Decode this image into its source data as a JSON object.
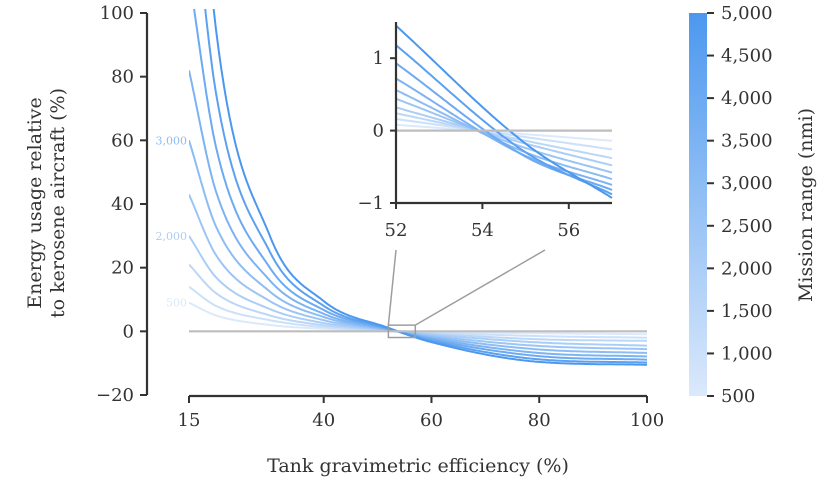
{
  "chart_data": [
    {
      "type": "line",
      "title": "",
      "xlabel": "Tank gravimetric efficiency (%)",
      "ylabel": [
        "Energy usage relative",
        "to kerosene aircraft (%)"
      ],
      "xlim": [
        15,
        100
      ],
      "ylim": [
        -20,
        100
      ],
      "x_ticks": [
        "15",
        "40",
        "60",
        "80",
        "100"
      ],
      "y_ticks": [
        "100",
        "80",
        "60",
        "40",
        "20",
        "0",
        "−20"
      ],
      "reference_line_y": 0,
      "series": [
        {
          "range_nmi": 500,
          "values": [
            {
              "x": 15,
              "y": 9
            },
            {
              "x": 20,
              "y": 5
            },
            {
              "x": 30,
              "y": 2
            },
            {
              "x": 40,
              "y": 0.8
            },
            {
              "x": 52,
              "y": 0.1
            },
            {
              "x": 60,
              "y": -0.2
            },
            {
              "x": 80,
              "y": -0.6
            },
            {
              "x": 100,
              "y": -0.9
            }
          ]
        },
        {
          "range_nmi": 1000,
          "values": [
            {
              "x": 15,
              "y": 14
            },
            {
              "x": 20,
              "y": 8
            },
            {
              "x": 30,
              "y": 3.5
            },
            {
              "x": 40,
              "y": 1.3
            },
            {
              "x": 52,
              "y": 0.15
            },
            {
              "x": 60,
              "y": -0.4
            },
            {
              "x": 80,
              "y": -1.5
            },
            {
              "x": 100,
              "y": -2
            }
          ]
        },
        {
          "range_nmi": 1500,
          "values": [
            {
              "x": 15,
              "y": 21
            },
            {
              "x": 20,
              "y": 12
            },
            {
              "x": 30,
              "y": 5
            },
            {
              "x": 40,
              "y": 1.9
            },
            {
              "x": 52,
              "y": 0.2
            },
            {
              "x": 60,
              "y": -0.7
            },
            {
              "x": 80,
              "y": -2.5
            },
            {
              "x": 100,
              "y": -3
            }
          ]
        },
        {
          "range_nmi": 2000,
          "values": [
            {
              "x": 15,
              "y": 30
            },
            {
              "x": 20,
              "y": 17
            },
            {
              "x": 30,
              "y": 7
            },
            {
              "x": 40,
              "y": 2.6
            },
            {
              "x": 52,
              "y": 0.3
            },
            {
              "x": 60,
              "y": -1
            },
            {
              "x": 80,
              "y": -3.5
            },
            {
              "x": 100,
              "y": -4.5
            }
          ]
        },
        {
          "range_nmi": 2500,
          "values": [
            {
              "x": 15,
              "y": 43
            },
            {
              "x": 20,
              "y": 24
            },
            {
              "x": 30,
              "y": 9.5
            },
            {
              "x": 40,
              "y": 3.5
            },
            {
              "x": 52,
              "y": 0.4
            },
            {
              "x": 60,
              "y": -1.4
            },
            {
              "x": 80,
              "y": -4.6
            },
            {
              "x": 100,
              "y": -5.6
            }
          ]
        },
        {
          "range_nmi": 3000,
          "values": [
            {
              "x": 15,
              "y": 60
            },
            {
              "x": 20,
              "y": 33
            },
            {
              "x": 30,
              "y": 12.5
            },
            {
              "x": 40,
              "y": 4.5
            },
            {
              "x": 52,
              "y": 0.5
            },
            {
              "x": 60,
              "y": -1.8
            },
            {
              "x": 80,
              "y": -5.7
            },
            {
              "x": 100,
              "y": -6.8
            }
          ]
        },
        {
          "range_nmi": 3500,
          "values": [
            {
              "x": 15,
              "y": 82
            },
            {
              "x": 20,
              "y": 44
            },
            {
              "x": 30,
              "y": 16
            },
            {
              "x": 40,
              "y": 5.5
            },
            {
              "x": 52,
              "y": 0.6
            },
            {
              "x": 60,
              "y": -2.2
            },
            {
              "x": 80,
              "y": -6.8
            },
            {
              "x": 100,
              "y": -7.9
            }
          ]
        },
        {
          "range_nmi": 4000,
          "values": [
            {
              "x": 15,
              "y": 112
            },
            {
              "x": 20,
              "y": 58
            },
            {
              "x": 30,
              "y": 20
            },
            {
              "x": 40,
              "y": 6.7
            },
            {
              "x": 52,
              "y": 0.75
            },
            {
              "x": 60,
              "y": -2.6
            },
            {
              "x": 80,
              "y": -7.8
            },
            {
              "x": 100,
              "y": -8.9
            }
          ]
        },
        {
          "range_nmi": 4500,
          "values": [
            {
              "x": 15,
              "y": 150
            },
            {
              "x": 20,
              "y": 75
            },
            {
              "x": 30,
              "y": 25
            },
            {
              "x": 40,
              "y": 8
            },
            {
              "x": 52,
              "y": 0.9
            },
            {
              "x": 60,
              "y": -3
            },
            {
              "x": 80,
              "y": -8.8
            },
            {
              "x": 100,
              "y": -9.8
            }
          ]
        },
        {
          "range_nmi": 5000,
          "values": [
            {
              "x": 15,
              "y": 200
            },
            {
              "x": 20,
              "y": 95
            },
            {
              "x": 30,
              "y": 30
            },
            {
              "x": 40,
              "y": 9.5
            },
            {
              "x": 52,
              "y": 1.1
            },
            {
              "x": 60,
              "y": -3.4
            },
            {
              "x": 80,
              "y": -9.6
            },
            {
              "x": 100,
              "y": -10.5
            }
          ]
        }
      ],
      "curve_labels": [
        {
          "text": "3,000",
          "range_nmi": 3000
        },
        {
          "text": "2,000",
          "range_nmi": 2000
        },
        {
          "text": "500",
          "range_nmi": 500
        }
      ],
      "zoom_box": {
        "xlim": [
          52,
          57
        ],
        "ylim": [
          -1,
          1
        ]
      }
    },
    {
      "type": "line",
      "title": "",
      "xlim": [
        52,
        57
      ],
      "ylim": [
        -1,
        1.5
      ],
      "x_ticks": [
        "52",
        "54",
        "56"
      ],
      "y_ticks": [
        "1",
        "0",
        "−1"
      ],
      "reference_line_y": 0,
      "series": [
        {
          "range_nmi": 500,
          "values": [
            {
              "x": 52,
              "y": 0.08
            },
            {
              "x": 55,
              "y": -0.05
            },
            {
              "x": 57,
              "y": -0.14
            }
          ]
        },
        {
          "range_nmi": 1000,
          "values": [
            {
              "x": 52,
              "y": 0.16
            },
            {
              "x": 55,
              "y": -0.09
            },
            {
              "x": 57,
              "y": -0.26
            }
          ]
        },
        {
          "range_nmi": 1500,
          "values": [
            {
              "x": 52,
              "y": 0.24
            },
            {
              "x": 55,
              "y": -0.14
            },
            {
              "x": 57,
              "y": -0.38
            }
          ]
        },
        {
          "range_nmi": 2000,
          "values": [
            {
              "x": 52,
              "y": 0.32
            },
            {
              "x": 55,
              "y": -0.18
            },
            {
              "x": 57,
              "y": -0.48
            }
          ]
        },
        {
          "range_nmi": 2500,
          "values": [
            {
              "x": 52,
              "y": 0.44
            },
            {
              "x": 55,
              "y": -0.24
            },
            {
              "x": 57,
              "y": -0.58
            }
          ]
        },
        {
          "range_nmi": 3000,
          "values": [
            {
              "x": 52,
              "y": 0.56
            },
            {
              "x": 55,
              "y": -0.3
            },
            {
              "x": 57,
              "y": -0.67
            }
          ]
        },
        {
          "range_nmi": 3500,
          "values": [
            {
              "x": 52,
              "y": 0.72
            },
            {
              "x": 55,
              "y": -0.35
            },
            {
              "x": 57,
              "y": -0.75
            }
          ]
        },
        {
          "range_nmi": 4000,
          "values": [
            {
              "x": 52,
              "y": 0.93
            },
            {
              "x": 55,
              "y": -0.36
            },
            {
              "x": 57,
              "y": -0.82
            }
          ]
        },
        {
          "range_nmi": 4500,
          "values": [
            {
              "x": 52,
              "y": 1.18
            },
            {
              "x": 55,
              "y": -0.3
            },
            {
              "x": 57,
              "y": -0.88
            }
          ]
        },
        {
          "range_nmi": 5000,
          "values": [
            {
              "x": 52,
              "y": 1.45
            },
            {
              "x": 55,
              "y": -0.18
            },
            {
              "x": 57,
              "y": -0.93
            }
          ]
        }
      ]
    }
  ],
  "colorbar": {
    "label": "Mission range (nmi)",
    "ticks": [
      "5,000",
      "4,500",
      "4,000",
      "3,500",
      "3,000",
      "2,500",
      "2,000",
      "1,500",
      "1,000",
      "500"
    ],
    "range": [
      500,
      5000
    ],
    "color_low": "#dbe9fb",
    "color_high": "#4c98ef"
  },
  "colors": {
    "reference_line": "#bdbdbd",
    "axis": "#333333",
    "connector": "#9e9e9e"
  }
}
